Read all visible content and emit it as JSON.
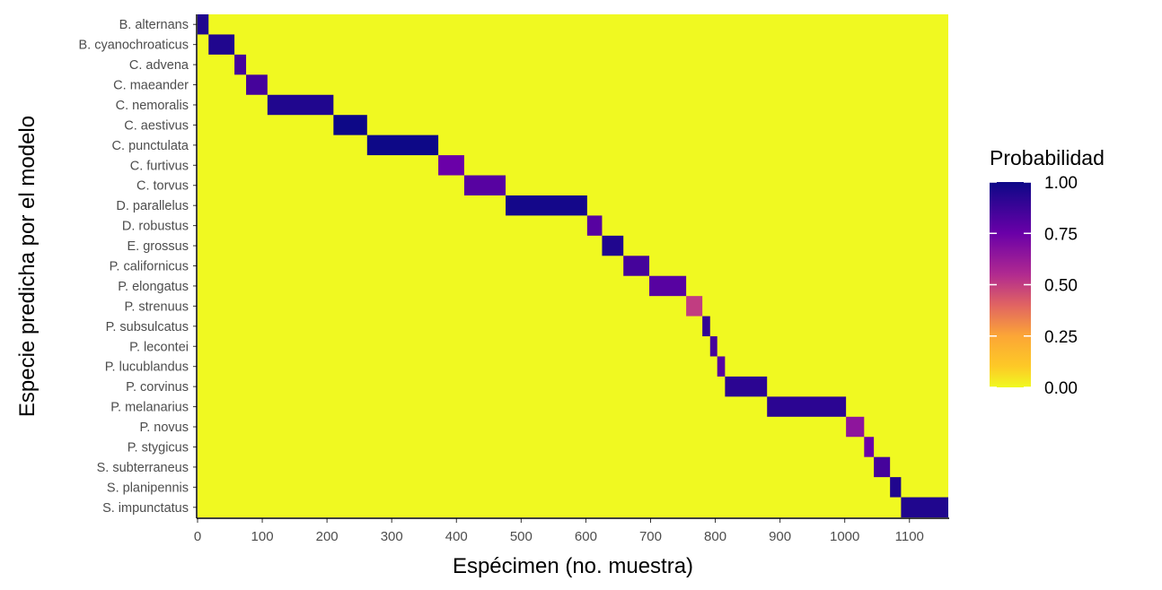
{
  "chart_data": {
    "type": "heatmap",
    "title": "",
    "xlabel": "Espécimen (no. muestra)",
    "ylabel": "Especie predicha por el modelo",
    "xlim": [
      0,
      1160
    ],
    "x_ticks": [
      0,
      100,
      200,
      300,
      400,
      500,
      600,
      700,
      800,
      900,
      1000,
      1100
    ],
    "species": [
      "B. alternans",
      "B. cyanochroaticus",
      "C. advena",
      "C. maeander",
      "C. nemoralis",
      "C. aestivus",
      "C. punctulata",
      "C. furtivus",
      "C. torvus",
      "D. parallelus",
      "D. robustus",
      "E. grossus",
      "P. californicus",
      "P. elongatus",
      "P. strenuus",
      "P. subsulcatus",
      "P. lecontei",
      "P. lucublandus",
      "P. corvinus",
      "P. melanarius",
      "P. novus",
      "P. stygicus",
      "S. subterraneus",
      "S. planipennis",
      "S. impunctatus"
    ],
    "diagonal_blocks": [
      {
        "species": "B. alternans",
        "x_start": 0,
        "x_end": 17,
        "probability": 0.95
      },
      {
        "species": "B. cyanochroaticus",
        "x_start": 17,
        "x_end": 57,
        "probability": 0.95
      },
      {
        "species": "C. advena",
        "x_start": 57,
        "x_end": 75,
        "probability": 0.85
      },
      {
        "species": "C. maeander",
        "x_start": 75,
        "x_end": 108,
        "probability": 0.85
      },
      {
        "species": "C. nemoralis",
        "x_start": 108,
        "x_end": 210,
        "probability": 0.95
      },
      {
        "species": "C. aestivus",
        "x_start": 210,
        "x_end": 262,
        "probability": 1.0
      },
      {
        "species": "C. punctulata",
        "x_start": 262,
        "x_end": 372,
        "probability": 1.0
      },
      {
        "species": "C. furtivus",
        "x_start": 372,
        "x_end": 412,
        "probability": 0.75
      },
      {
        "species": "C. torvus",
        "x_start": 412,
        "x_end": 476,
        "probability": 0.8
      },
      {
        "species": "D. parallelus",
        "x_start": 476,
        "x_end": 602,
        "probability": 0.98
      },
      {
        "species": "D. robustus",
        "x_start": 602,
        "x_end": 625,
        "probability": 0.8
      },
      {
        "species": "E. grossus",
        "x_start": 625,
        "x_end": 658,
        "probability": 0.95
      },
      {
        "species": "P. californicus",
        "x_start": 658,
        "x_end": 698,
        "probability": 0.85
      },
      {
        "species": "P. elongatus",
        "x_start": 698,
        "x_end": 755,
        "probability": 0.8
      },
      {
        "species": "P. strenuus",
        "x_start": 755,
        "x_end": 780,
        "probability": 0.5
      },
      {
        "species": "P. subsulcatus",
        "x_start": 780,
        "x_end": 792,
        "probability": 0.9
      },
      {
        "species": "P. lecontei",
        "x_start": 792,
        "x_end": 803,
        "probability": 0.85
      },
      {
        "species": "P. lucublandus",
        "x_start": 803,
        "x_end": 815,
        "probability": 0.8
      },
      {
        "species": "P. corvinus",
        "x_start": 815,
        "x_end": 880,
        "probability": 0.92
      },
      {
        "species": "P. melanarius",
        "x_start": 880,
        "x_end": 1002,
        "probability": 0.92
      },
      {
        "species": "P. novus",
        "x_start": 1002,
        "x_end": 1030,
        "probability": 0.65
      },
      {
        "species": "P. stygicus",
        "x_start": 1030,
        "x_end": 1045,
        "probability": 0.75
      },
      {
        "species": "S. subterraneus",
        "x_start": 1045,
        "x_end": 1070,
        "probability": 0.85
      },
      {
        "species": "S. planipennis",
        "x_start": 1070,
        "x_end": 1087,
        "probability": 0.95
      },
      {
        "species": "S. impunctatus",
        "x_start": 1087,
        "x_end": 1160,
        "probability": 0.95
      }
    ],
    "legend": {
      "title": "Probabilidad",
      "ticks": [
        "1.00",
        "0.75",
        "0.50",
        "0.25",
        "0.00"
      ],
      "colors": [
        "#0d0887",
        "#6a00a8",
        "#b12a90",
        "#e16462",
        "#fca636",
        "#f0f921"
      ]
    },
    "colorscale": "plasma",
    "grid": false
  }
}
